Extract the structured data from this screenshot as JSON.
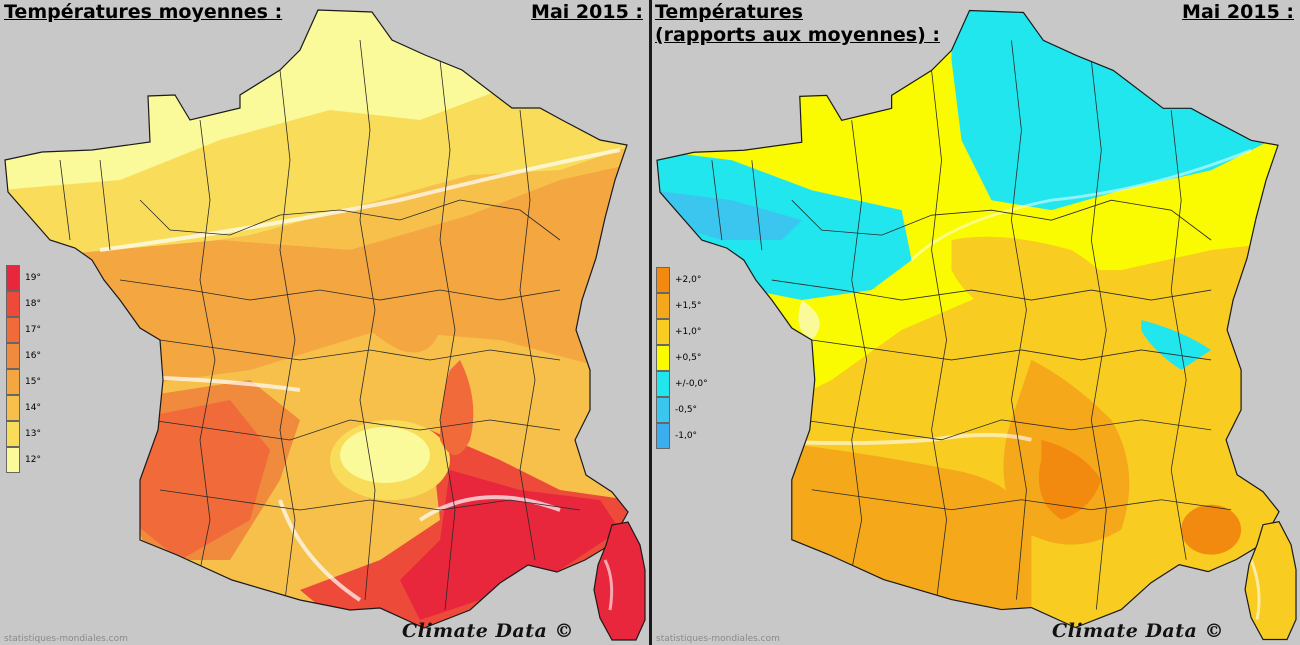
{
  "left_panel": {
    "title": "Températures moyennes :",
    "period": "Mai 2015 :",
    "credit": "Climate Data ©",
    "source": "statistiques-mondiales.com",
    "legend": [
      {
        "label": "19°",
        "color": "#e8263c"
      },
      {
        "label": "18°",
        "color": "#ee4a3a"
      },
      {
        "label": "17°",
        "color": "#f06a3a"
      },
      {
        "label": "16°",
        "color": "#f08a3c"
      },
      {
        "label": "15°",
        "color": "#f4a640"
      },
      {
        "label": "14°",
        "color": "#f6c04a"
      },
      {
        "label": "13°",
        "color": "#f8dc5a"
      },
      {
        "label": "12°",
        "color": "#fafa9a"
      }
    ]
  },
  "right_panel": {
    "title_line1": "Températures",
    "title_line2": "(rapports aux moyennes) :",
    "period": "Mai 2015 :",
    "credit": "Climate Data ©",
    "source": "statistiques-mondiales.com",
    "legend": [
      {
        "label": "+2,0°",
        "color": "#f28a10"
      },
      {
        "label": "+1,5°",
        "color": "#f4a81a"
      },
      {
        "label": "+1,0°",
        "color": "#f8cc20"
      },
      {
        "label": "+0,5°",
        "color": "#fafa00"
      },
      {
        "label": "+/-0,0°",
        "color": "#22e6ee"
      },
      {
        "label": "-0,5°",
        "color": "#3ac6ee"
      },
      {
        "label": "-1,0°",
        "color": "#3aaeee"
      }
    ]
  }
}
